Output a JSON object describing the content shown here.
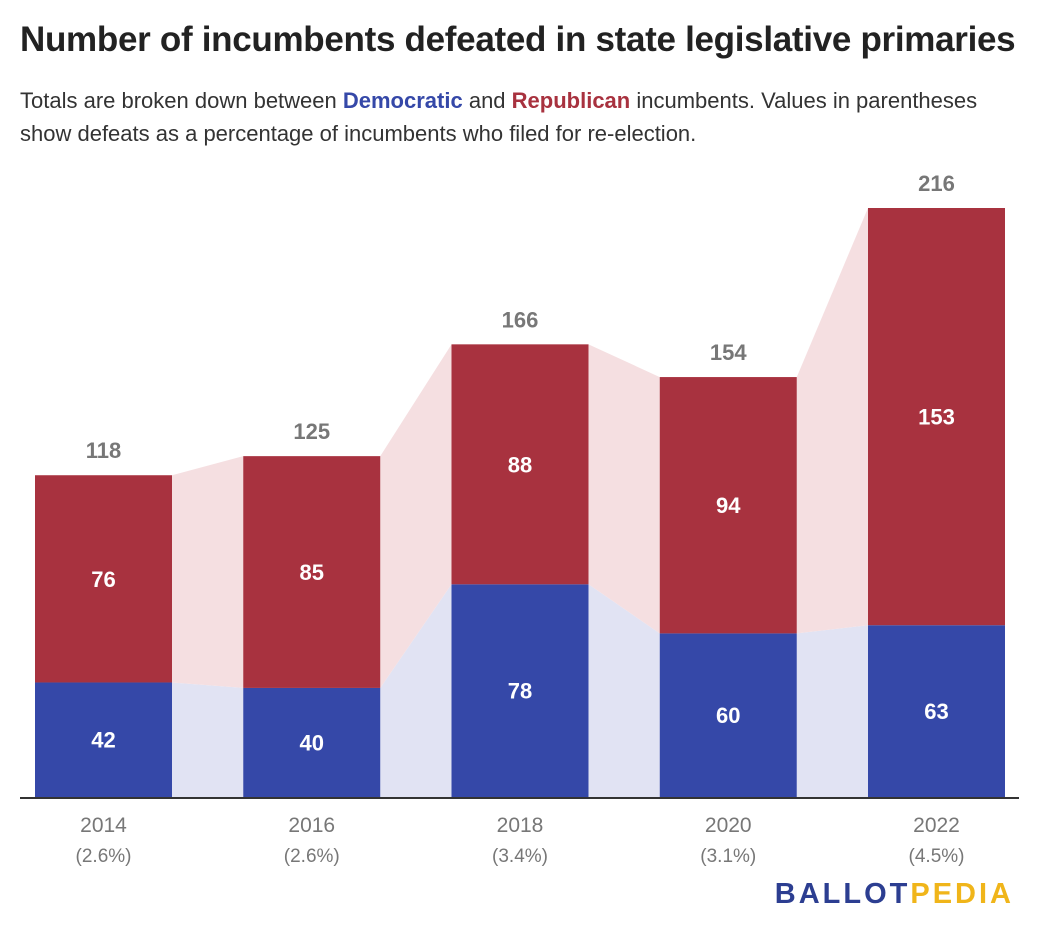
{
  "title": "Number of incumbents defeated in state legislative primaries",
  "subtitle": {
    "before": "Totals are broken down between ",
    "dem": "Democratic",
    "middle": " and ",
    "rep": "Republican",
    "after": " incumbents. Values in parentheses show defeats as a percentage of incumbents who filed for re-election."
  },
  "colors": {
    "democratic": "#3548a8",
    "republican": "#a8323f",
    "dem_band": "#e1e3f3",
    "rep_band": "#f5dfe1",
    "total_label": "#777777",
    "axis": "#333333"
  },
  "chart_data": {
    "type": "bar",
    "stacked": true,
    "categories": [
      "2014",
      "2016",
      "2018",
      "2020",
      "2022"
    ],
    "category_sublabels": [
      "(2.6%)",
      "(2.6%)",
      "(3.4%)",
      "(3.1%)",
      "(4.5%)"
    ],
    "series": [
      {
        "name": "Democratic",
        "values": [
          42,
          40,
          78,
          60,
          63
        ]
      },
      {
        "name": "Republican",
        "values": [
          76,
          85,
          88,
          94,
          153
        ]
      }
    ],
    "totals": [
      118,
      125,
      166,
      154,
      216
    ],
    "ylim": [
      0,
      216
    ],
    "grid": false,
    "xlabel": "",
    "ylabel": ""
  },
  "logo": {
    "part1": "BALLOT",
    "part2": "PEDIA"
  }
}
